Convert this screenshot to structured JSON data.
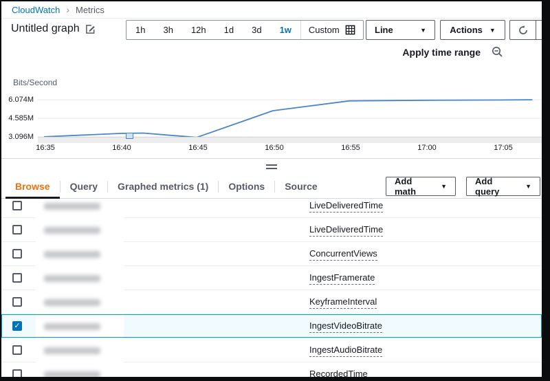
{
  "breadcrumb": {
    "root": "CloudWatch",
    "current": "Metrics"
  },
  "header": {
    "title": "Untitled graph",
    "time_ranges": [
      "1h",
      "3h",
      "12h",
      "1d",
      "3d",
      "1w"
    ],
    "selected_range": "1w",
    "custom_label": "Custom",
    "line_type_selected": "Line",
    "actions_label": "Actions"
  },
  "chart_toolbar": {
    "apply_label": "Apply time range"
  },
  "chart_data": {
    "type": "line",
    "title": "",
    "ylabel": "Bits/Second",
    "x_ticks": [
      "16:35",
      "16:40",
      "16:45",
      "16:50",
      "16:55",
      "17:00",
      "17:05"
    ],
    "y_ticks": [
      "6.074M",
      "4.585M",
      "3.096M"
    ],
    "y_tick_values_m": [
      6.074,
      4.585,
      3.096
    ],
    "ylim_m": [
      3.096,
      6.074
    ],
    "grid": true,
    "legend_position": "none",
    "series": [
      {
        "name": "IngestVideoBitrate",
        "color": "#4a86c8",
        "x_minutes": [
          0,
          5,
          6.5,
          10,
          15,
          20,
          25,
          30,
          32
        ],
        "values_m_bits_per_second": [
          3.1,
          3.37,
          3.4,
          3.05,
          5.19,
          5.98,
          6.03,
          6.05,
          6.074
        ]
      }
    ],
    "annotation_marker_at": "16:40"
  },
  "tabs": {
    "items": [
      "Browse",
      "Query",
      "Graphed metrics (1)",
      "Options",
      "Source"
    ],
    "active": "Browse",
    "add_math_label": "Add math",
    "add_query_label": "Add query"
  },
  "table": {
    "rows": [
      {
        "metric": "LiveDeliveredTime",
        "checked": false
      },
      {
        "metric": "LiveDeliveredTime",
        "checked": false
      },
      {
        "metric": "ConcurrentViews",
        "checked": false
      },
      {
        "metric": "IngestFramerate",
        "checked": false
      },
      {
        "metric": "KeyframeInterval",
        "checked": false
      },
      {
        "metric": "IngestVideoBitrate",
        "checked": true,
        "selected": true
      },
      {
        "metric": "IngestAudioBitrate",
        "checked": false
      },
      {
        "metric": "RecordedTime",
        "checked": false
      }
    ]
  },
  "icons": {
    "caret_down": "▼",
    "breadcrumb_sep": "›",
    "checkmark": "✓"
  },
  "colors": {
    "accent_orange": "#ec7211",
    "link_blue": "#0073bb",
    "selected_row_border": "#00a1c9",
    "selected_row_bg": "#f1faff",
    "chart_line": "#4a86c8"
  }
}
